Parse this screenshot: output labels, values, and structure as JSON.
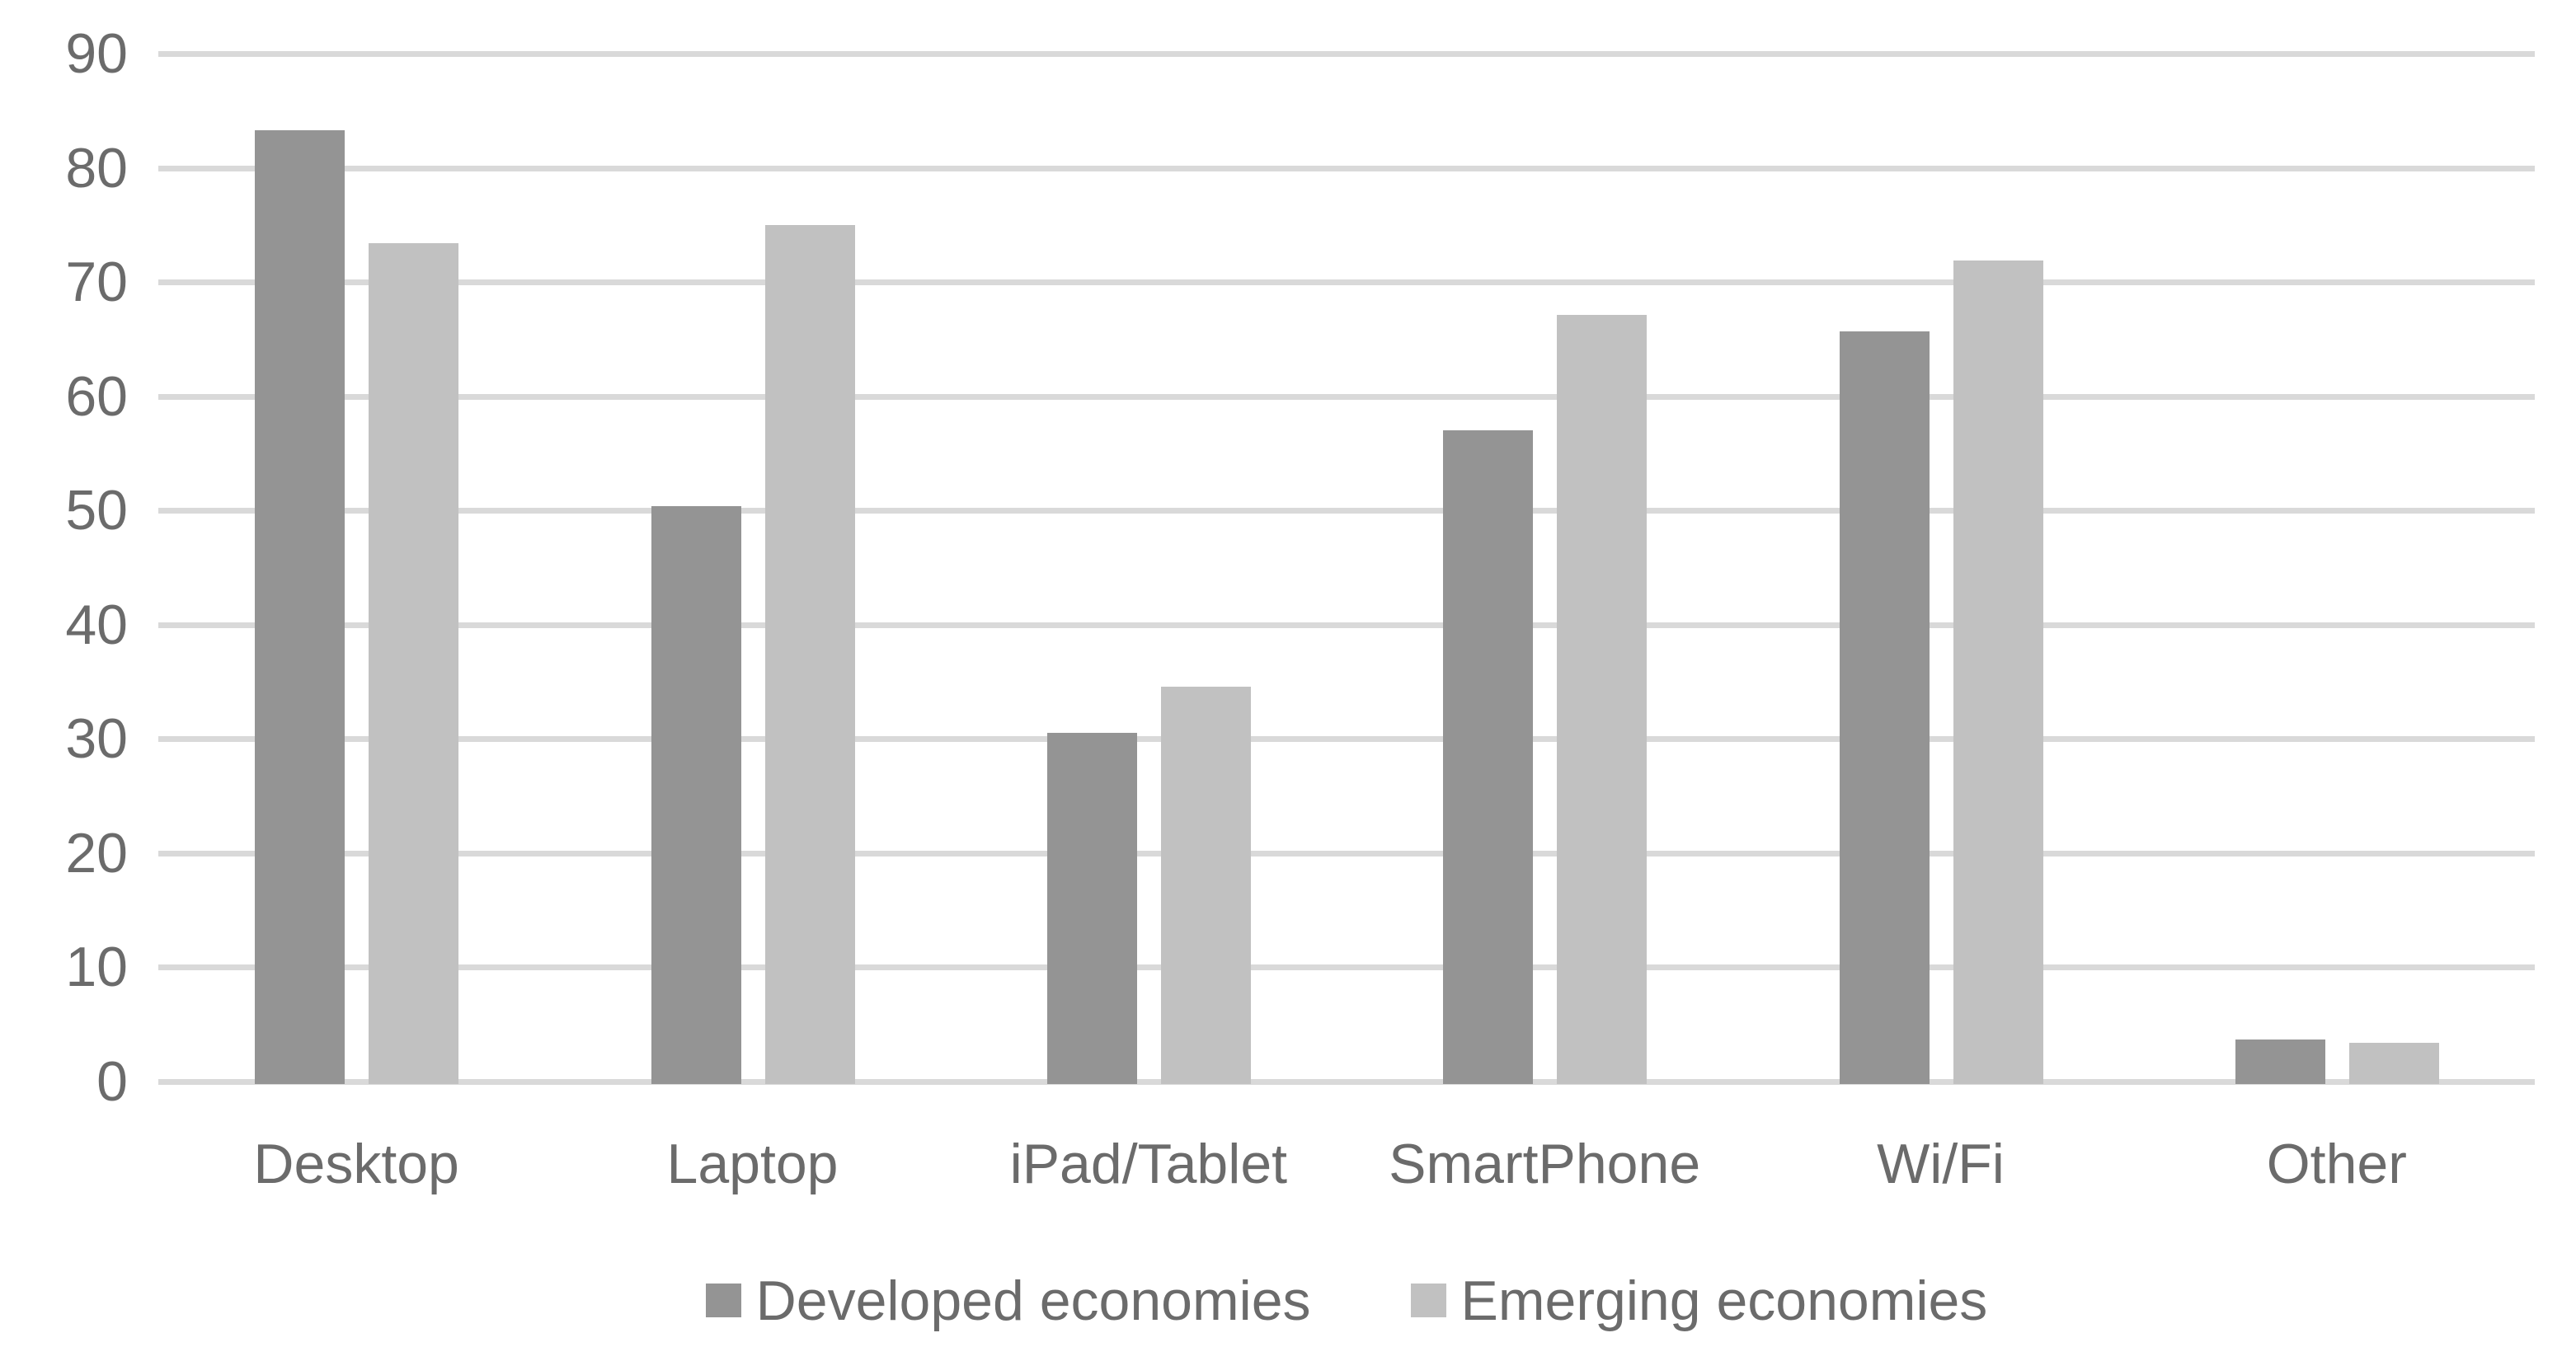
{
  "chart_data": {
    "type": "bar",
    "title": "",
    "xlabel": "",
    "ylabel": "",
    "categories": [
      "Desktop",
      "Laptop",
      "iPad/Tablet",
      "SmartPhone",
      "Wi/Fi",
      "Other"
    ],
    "series": [
      {
        "name": "Developed economies",
        "color": "#949494",
        "values": [
          83.3,
          50.4,
          30.5,
          57.0,
          65.7,
          3.7
        ]
      },
      {
        "name": "Emerging economies",
        "color": "#c1c1c1",
        "values": [
          73.4,
          75.0,
          34.6,
          67.1,
          71.9,
          3.4
        ]
      }
    ],
    "ylim": [
      0,
      90
    ],
    "ytick_step": 10,
    "ytick_labels": [
      "0",
      "10",
      "20",
      "30",
      "40",
      "50",
      "60",
      "70",
      "80",
      "90"
    ],
    "grid": true,
    "gridline_color": "#d9d9d9",
    "text_color": "#6b6b6b",
    "background": "#ffffff",
    "legend_position": "bottom"
  }
}
